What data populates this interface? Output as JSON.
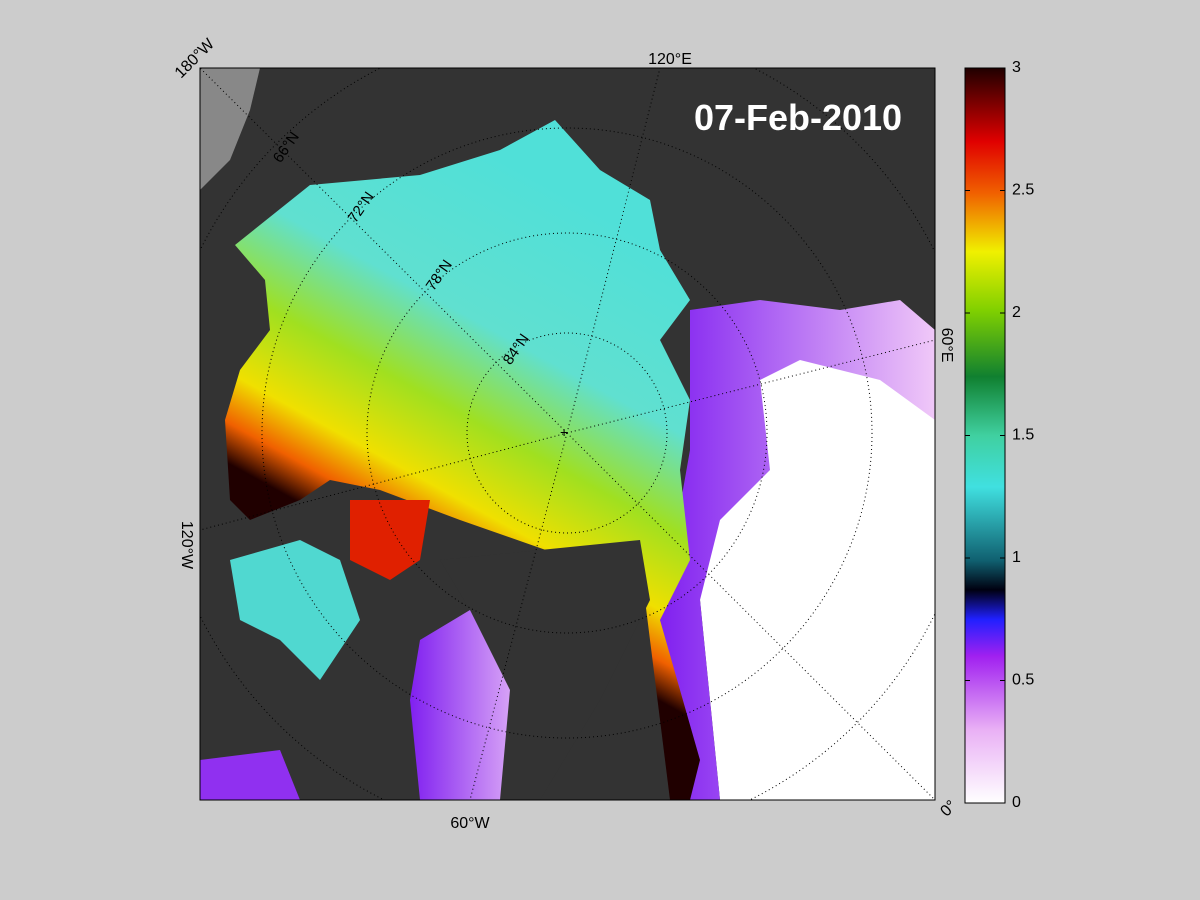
{
  "map": {
    "date": "07-Feb-2010",
    "longitude_labels": [
      "180°W",
      "120°E",
      "60°E",
      "0°",
      "60°W",
      "120°W"
    ],
    "latitude_labels": [
      "66°N",
      "72°N",
      "78°N",
      "84°N"
    ]
  },
  "colorbar": {
    "range": [
      0,
      3
    ],
    "ticks": [
      0,
      0.5,
      1,
      1.5,
      2,
      2.5,
      3
    ]
  }
}
